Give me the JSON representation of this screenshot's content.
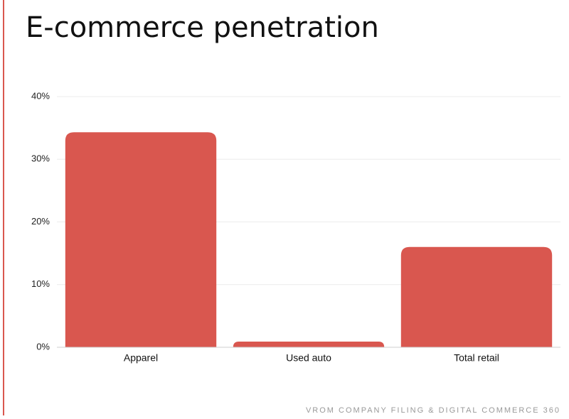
{
  "chart_data": {
    "type": "bar",
    "title": "E-commerce penetration",
    "categories": [
      "Apparel",
      "Used auto",
      "Total retail"
    ],
    "values": [
      34.3,
      0.9,
      16
    ],
    "color": "#d9574f",
    "ylim": [
      0,
      40
    ],
    "yticks": [
      {
        "value": 0,
        "label": "0%"
      },
      {
        "value": 10,
        "label": "10%"
      },
      {
        "value": 20,
        "label": "20%"
      },
      {
        "value": 30,
        "label": "30%"
      },
      {
        "value": 40,
        "label": "40%"
      }
    ],
    "grid": true,
    "source": "VROM COMPANY FILING & DIGITAL COMMERCE 360"
  }
}
